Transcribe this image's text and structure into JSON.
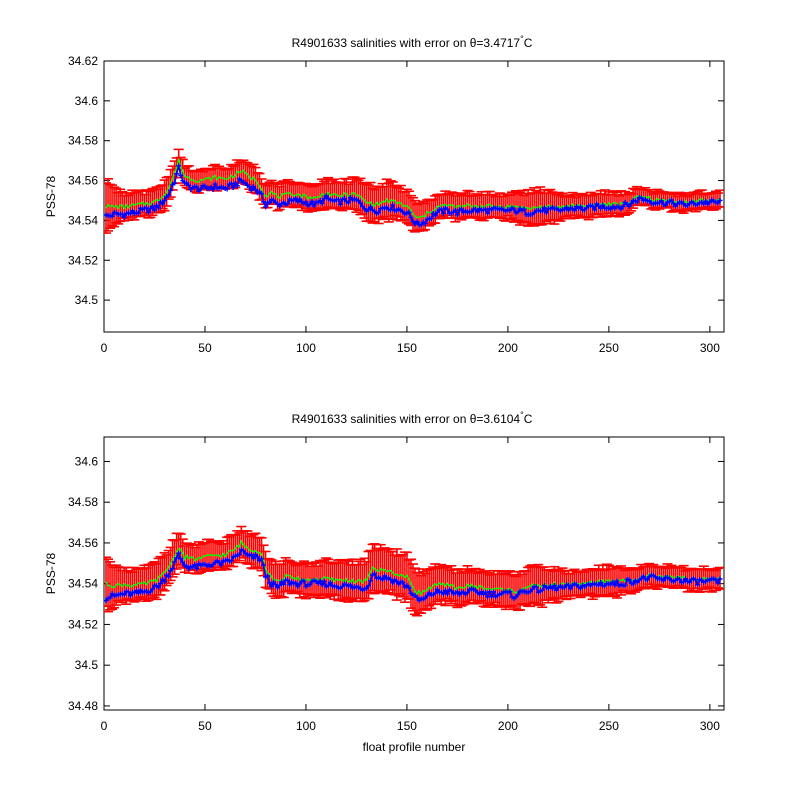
{
  "chart_data": [
    {
      "type": "line",
      "title_main": "R4901633 salinities with error on θ=3.4717",
      "title_degree": "°",
      "title_unit": "C",
      "xlabel": "",
      "ylabel": "PSS-78",
      "xlim": [
        0,
        307
      ],
      "ylim": [
        34.484,
        34.62
      ],
      "xticks": [
        0,
        50,
        100,
        150,
        200,
        250,
        300
      ],
      "yticks": [
        34.5,
        34.52,
        34.54,
        34.56,
        34.58,
        34.6,
        34.62
      ],
      "xtick_labels": [
        "0",
        "50",
        "100",
        "150",
        "200",
        "250",
        "300"
      ],
      "ytick_labels": [
        "34.5",
        "34.52",
        "34.54",
        "34.56",
        "34.58",
        "34.6",
        "34.62"
      ],
      "grid": false,
      "colors": {
        "error_bars": "#ff0000",
        "mapped": "#00ff00",
        "float": "#0000ff"
      },
      "segments": [
        [
          1,
          34.542
        ],
        [
          5,
          34.543
        ],
        [
          10,
          34.543
        ],
        [
          15,
          34.544
        ],
        [
          20,
          34.545
        ],
        [
          25,
          34.546
        ],
        [
          28,
          34.548
        ],
        [
          32,
          34.553
        ],
        [
          35,
          34.56
        ],
        [
          37,
          34.566
        ],
        [
          40,
          34.558
        ],
        [
          45,
          34.556
        ],
        [
          50,
          34.556
        ],
        [
          55,
          34.557
        ],
        [
          60,
          34.556
        ],
        [
          65,
          34.558
        ],
        [
          68,
          34.56
        ],
        [
          72,
          34.557
        ],
        [
          75,
          34.556
        ],
        [
          78,
          34.552
        ],
        [
          80,
          34.548
        ],
        [
          83,
          34.55
        ],
        [
          86,
          34.548
        ],
        [
          90,
          34.549
        ],
        [
          95,
          34.55
        ],
        [
          100,
          34.549
        ],
        [
          105,
          34.548
        ],
        [
          110,
          34.551
        ],
        [
          115,
          34.549
        ],
        [
          120,
          34.55
        ],
        [
          125,
          34.55
        ],
        [
          130,
          34.546
        ],
        [
          135,
          34.545
        ],
        [
          140,
          34.547
        ],
        [
          145,
          34.546
        ],
        [
          150,
          34.544
        ],
        [
          155,
          34.538
        ],
        [
          158,
          34.539
        ],
        [
          162,
          34.542
        ],
        [
          165,
          34.544
        ],
        [
          170,
          34.545
        ],
        [
          175,
          34.544
        ],
        [
          180,
          34.545
        ],
        [
          185,
          34.545
        ],
        [
          190,
          34.545
        ],
        [
          195,
          34.545
        ],
        [
          200,
          34.545
        ],
        [
          205,
          34.545
        ],
        [
          210,
          34.544
        ],
        [
          215,
          34.545
        ],
        [
          220,
          34.545
        ],
        [
          225,
          34.545
        ],
        [
          230,
          34.546
        ],
        [
          235,
          34.546
        ],
        [
          240,
          34.546
        ],
        [
          245,
          34.547
        ],
        [
          250,
          34.547
        ],
        [
          255,
          34.547
        ],
        [
          260,
          34.548
        ],
        [
          263,
          34.55
        ],
        [
          266,
          34.551
        ],
        [
          270,
          34.55
        ],
        [
          275,
          34.549
        ],
        [
          280,
          34.549
        ],
        [
          285,
          34.548
        ],
        [
          290,
          34.548
        ],
        [
          295,
          34.549
        ],
        [
          300,
          34.549
        ],
        [
          305,
          34.549
        ]
      ],
      "mapped_offsets": [
        [
          1,
          0.005
        ],
        [
          5,
          0.004
        ],
        [
          30,
          0.003
        ],
        [
          37,
          0.004
        ],
        [
          68,
          0.005
        ],
        [
          100,
          0.003
        ],
        [
          150,
          0.003
        ],
        [
          200,
          0.002
        ],
        [
          250,
          0.001
        ],
        [
          305,
          0.001
        ]
      ],
      "errors": [
        [
          1,
          0.012
        ],
        [
          5,
          0.01
        ],
        [
          10,
          0.007
        ],
        [
          20,
          0.006
        ],
        [
          30,
          0.007
        ],
        [
          40,
          0.005
        ],
        [
          60,
          0.005
        ],
        [
          80,
          0.006
        ],
        [
          100,
          0.006
        ],
        [
          120,
          0.007
        ],
        [
          135,
          0.009
        ],
        [
          150,
          0.008
        ],
        [
          160,
          0.006
        ],
        [
          180,
          0.006
        ],
        [
          200,
          0.006
        ],
        [
          215,
          0.009
        ],
        [
          230,
          0.005
        ],
        [
          250,
          0.006
        ],
        [
          270,
          0.004
        ],
        [
          305,
          0.004
        ]
      ]
    },
    {
      "type": "line",
      "title_main": "R4901633 salinities with error on θ=3.6104",
      "title_degree": "°",
      "title_unit": "C",
      "xlabel": "float profile number",
      "ylabel": "PSS-78",
      "xlim": [
        0,
        307
      ],
      "ylim": [
        34.478,
        34.612
      ],
      "xticks": [
        0,
        50,
        100,
        150,
        200,
        250,
        300
      ],
      "yticks": [
        34.48,
        34.5,
        34.52,
        34.54,
        34.56,
        34.58,
        34.6
      ],
      "xtick_labels": [
        "0",
        "50",
        "100",
        "150",
        "200",
        "250",
        "300"
      ],
      "ytick_labels": [
        "34.48",
        "34.5",
        "34.52",
        "34.54",
        "34.56",
        "34.58",
        "34.6"
      ],
      "grid": false,
      "colors": {
        "error_bars": "#ff0000",
        "mapped": "#00ff00",
        "float": "#0000ff"
      },
      "segments": [
        [
          1,
          34.533
        ],
        [
          5,
          34.534
        ],
        [
          10,
          34.535
        ],
        [
          15,
          34.535
        ],
        [
          20,
          34.536
        ],
        [
          25,
          34.538
        ],
        [
          28,
          34.54
        ],
        [
          32,
          34.545
        ],
        [
          35,
          34.55
        ],
        [
          37,
          34.554
        ],
        [
          40,
          34.549
        ],
        [
          45,
          34.548
        ],
        [
          50,
          34.549
        ],
        [
          55,
          34.55
        ],
        [
          60,
          34.55
        ],
        [
          65,
          34.553
        ],
        [
          68,
          34.556
        ],
        [
          72,
          34.553
        ],
        [
          75,
          34.553
        ],
        [
          78,
          34.552
        ],
        [
          80,
          34.544
        ],
        [
          83,
          34.54
        ],
        [
          86,
          34.538
        ],
        [
          90,
          34.541
        ],
        [
          95,
          34.54
        ],
        [
          100,
          34.54
        ],
        [
          105,
          34.54
        ],
        [
          110,
          34.54
        ],
        [
          115,
          34.539
        ],
        [
          120,
          34.539
        ],
        [
          125,
          34.538
        ],
        [
          130,
          34.538
        ],
        [
          133,
          34.545
        ],
        [
          136,
          34.543
        ],
        [
          140,
          34.543
        ],
        [
          145,
          34.541
        ],
        [
          150,
          34.539
        ],
        [
          155,
          34.532
        ],
        [
          158,
          34.532
        ],
        [
          162,
          34.535
        ],
        [
          165,
          34.536
        ],
        [
          170,
          34.536
        ],
        [
          175,
          34.535
        ],
        [
          180,
          34.536
        ],
        [
          185,
          34.536
        ],
        [
          190,
          34.535
        ],
        [
          195,
          34.535
        ],
        [
          200,
          34.535
        ],
        [
          203,
          34.534
        ],
        [
          210,
          34.537
        ],
        [
          215,
          34.537
        ],
        [
          220,
          34.538
        ],
        [
          225,
          34.538
        ],
        [
          230,
          34.538
        ],
        [
          235,
          34.539
        ],
        [
          240,
          34.539
        ],
        [
          245,
          34.54
        ],
        [
          250,
          34.54
        ],
        [
          255,
          34.54
        ],
        [
          260,
          34.541
        ],
        [
          265,
          34.542
        ],
        [
          270,
          34.543
        ],
        [
          275,
          34.542
        ],
        [
          280,
          34.542
        ],
        [
          285,
          34.542
        ],
        [
          290,
          34.541
        ],
        [
          295,
          34.541
        ],
        [
          300,
          34.541
        ],
        [
          305,
          34.541
        ]
      ],
      "mapped_offsets": [
        [
          1,
          0.007
        ],
        [
          5,
          0.005
        ],
        [
          30,
          0.003
        ],
        [
          37,
          0.004
        ],
        [
          68,
          0.004
        ],
        [
          100,
          0.002
        ],
        [
          150,
          0.004
        ],
        [
          200,
          0.002
        ],
        [
          250,
          0.001
        ],
        [
          305,
          0.001
        ]
      ],
      "errors": [
        [
          1,
          0.012
        ],
        [
          5,
          0.01
        ],
        [
          10,
          0.008
        ],
        [
          20,
          0.008
        ],
        [
          30,
          0.009
        ],
        [
          40,
          0.007
        ],
        [
          60,
          0.007
        ],
        [
          80,
          0.008
        ],
        [
          100,
          0.008
        ],
        [
          120,
          0.009
        ],
        [
          135,
          0.011
        ],
        [
          150,
          0.011
        ],
        [
          160,
          0.009
        ],
        [
          180,
          0.008
        ],
        [
          200,
          0.008
        ],
        [
          215,
          0.009
        ],
        [
          230,
          0.006
        ],
        [
          250,
          0.007
        ],
        [
          270,
          0.005
        ],
        [
          305,
          0.005
        ]
      ]
    }
  ]
}
